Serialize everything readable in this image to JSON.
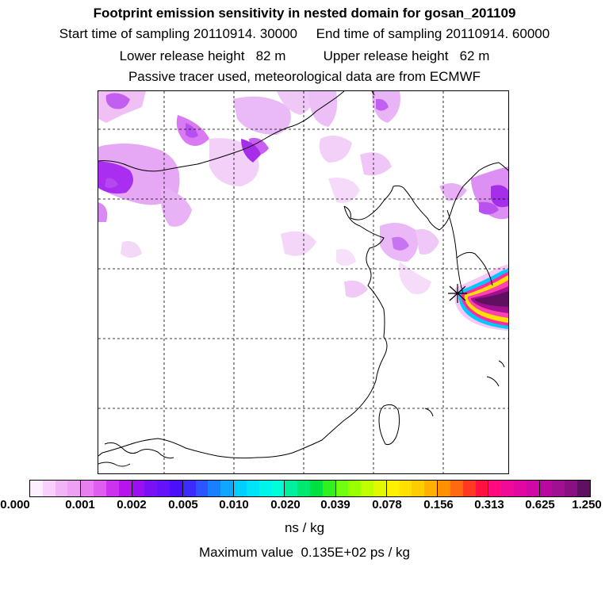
{
  "header": {
    "title": "Footprint emission sensitivity in nested domain for gosan_201109",
    "sampling_line": "Start time of sampling 20110914. 30000     End time of sampling 20110914. 60000",
    "release_line": "Lower release height   82 m          Upper release height   62 m",
    "tracer_line": "Passive tracer used, meteorological data are from ECMWF"
  },
  "colorbar": {
    "tick_labels": [
      "0.000",
      "0.001",
      "0.002",
      "0.005",
      "0.010",
      "0.020",
      "0.039",
      "0.078",
      "0.156",
      "0.313",
      "0.625",
      "1.250"
    ],
    "units": "ns / kg",
    "segments": [
      [
        "#fdf0fd",
        "#f8d0fb",
        "#f3b3f8",
        "#eea0f5"
      ],
      [
        "#e87ff1",
        "#de5ef0",
        "#cc33ee",
        "#b814ee"
      ],
      [
        "#9a10f0",
        "#7a10f4",
        "#6412f8",
        "#4b10fa"
      ],
      [
        "#3c2cff",
        "#2a55ff",
        "#1a7fff",
        "#10a6ff"
      ],
      [
        "#00d0ff",
        "#00e4f8",
        "#00f4ea",
        "#00ffd8"
      ],
      [
        "#00f0a0",
        "#00e870",
        "#00e040",
        "#30f020"
      ],
      [
        "#70ff10",
        "#9aff00",
        "#c0ff00",
        "#e0f800"
      ],
      [
        "#fff000",
        "#ffe000",
        "#ffcc00",
        "#ffb000"
      ],
      [
        "#ff9000",
        "#ff6a10",
        "#ff3a20",
        "#ff1040"
      ],
      [
        "#ff0a80",
        "#f00a98",
        "#e008a0",
        "#d008a8"
      ],
      [
        "#b808a0",
        "#a01090",
        "#881080",
        "#601060"
      ]
    ]
  },
  "max_value_label": "Maximum value  0.135E+02 ps / kg",
  "map": {
    "receptor": "gosan",
    "gridlines": "dashed",
    "high_sensitivity_colors": [
      "#00c8ff",
      "#3c6aff",
      "#7a28ff",
      "#ff10a0",
      "#ffe000",
      "#80ff00",
      "#d008a8",
      "#a01090"
    ]
  }
}
